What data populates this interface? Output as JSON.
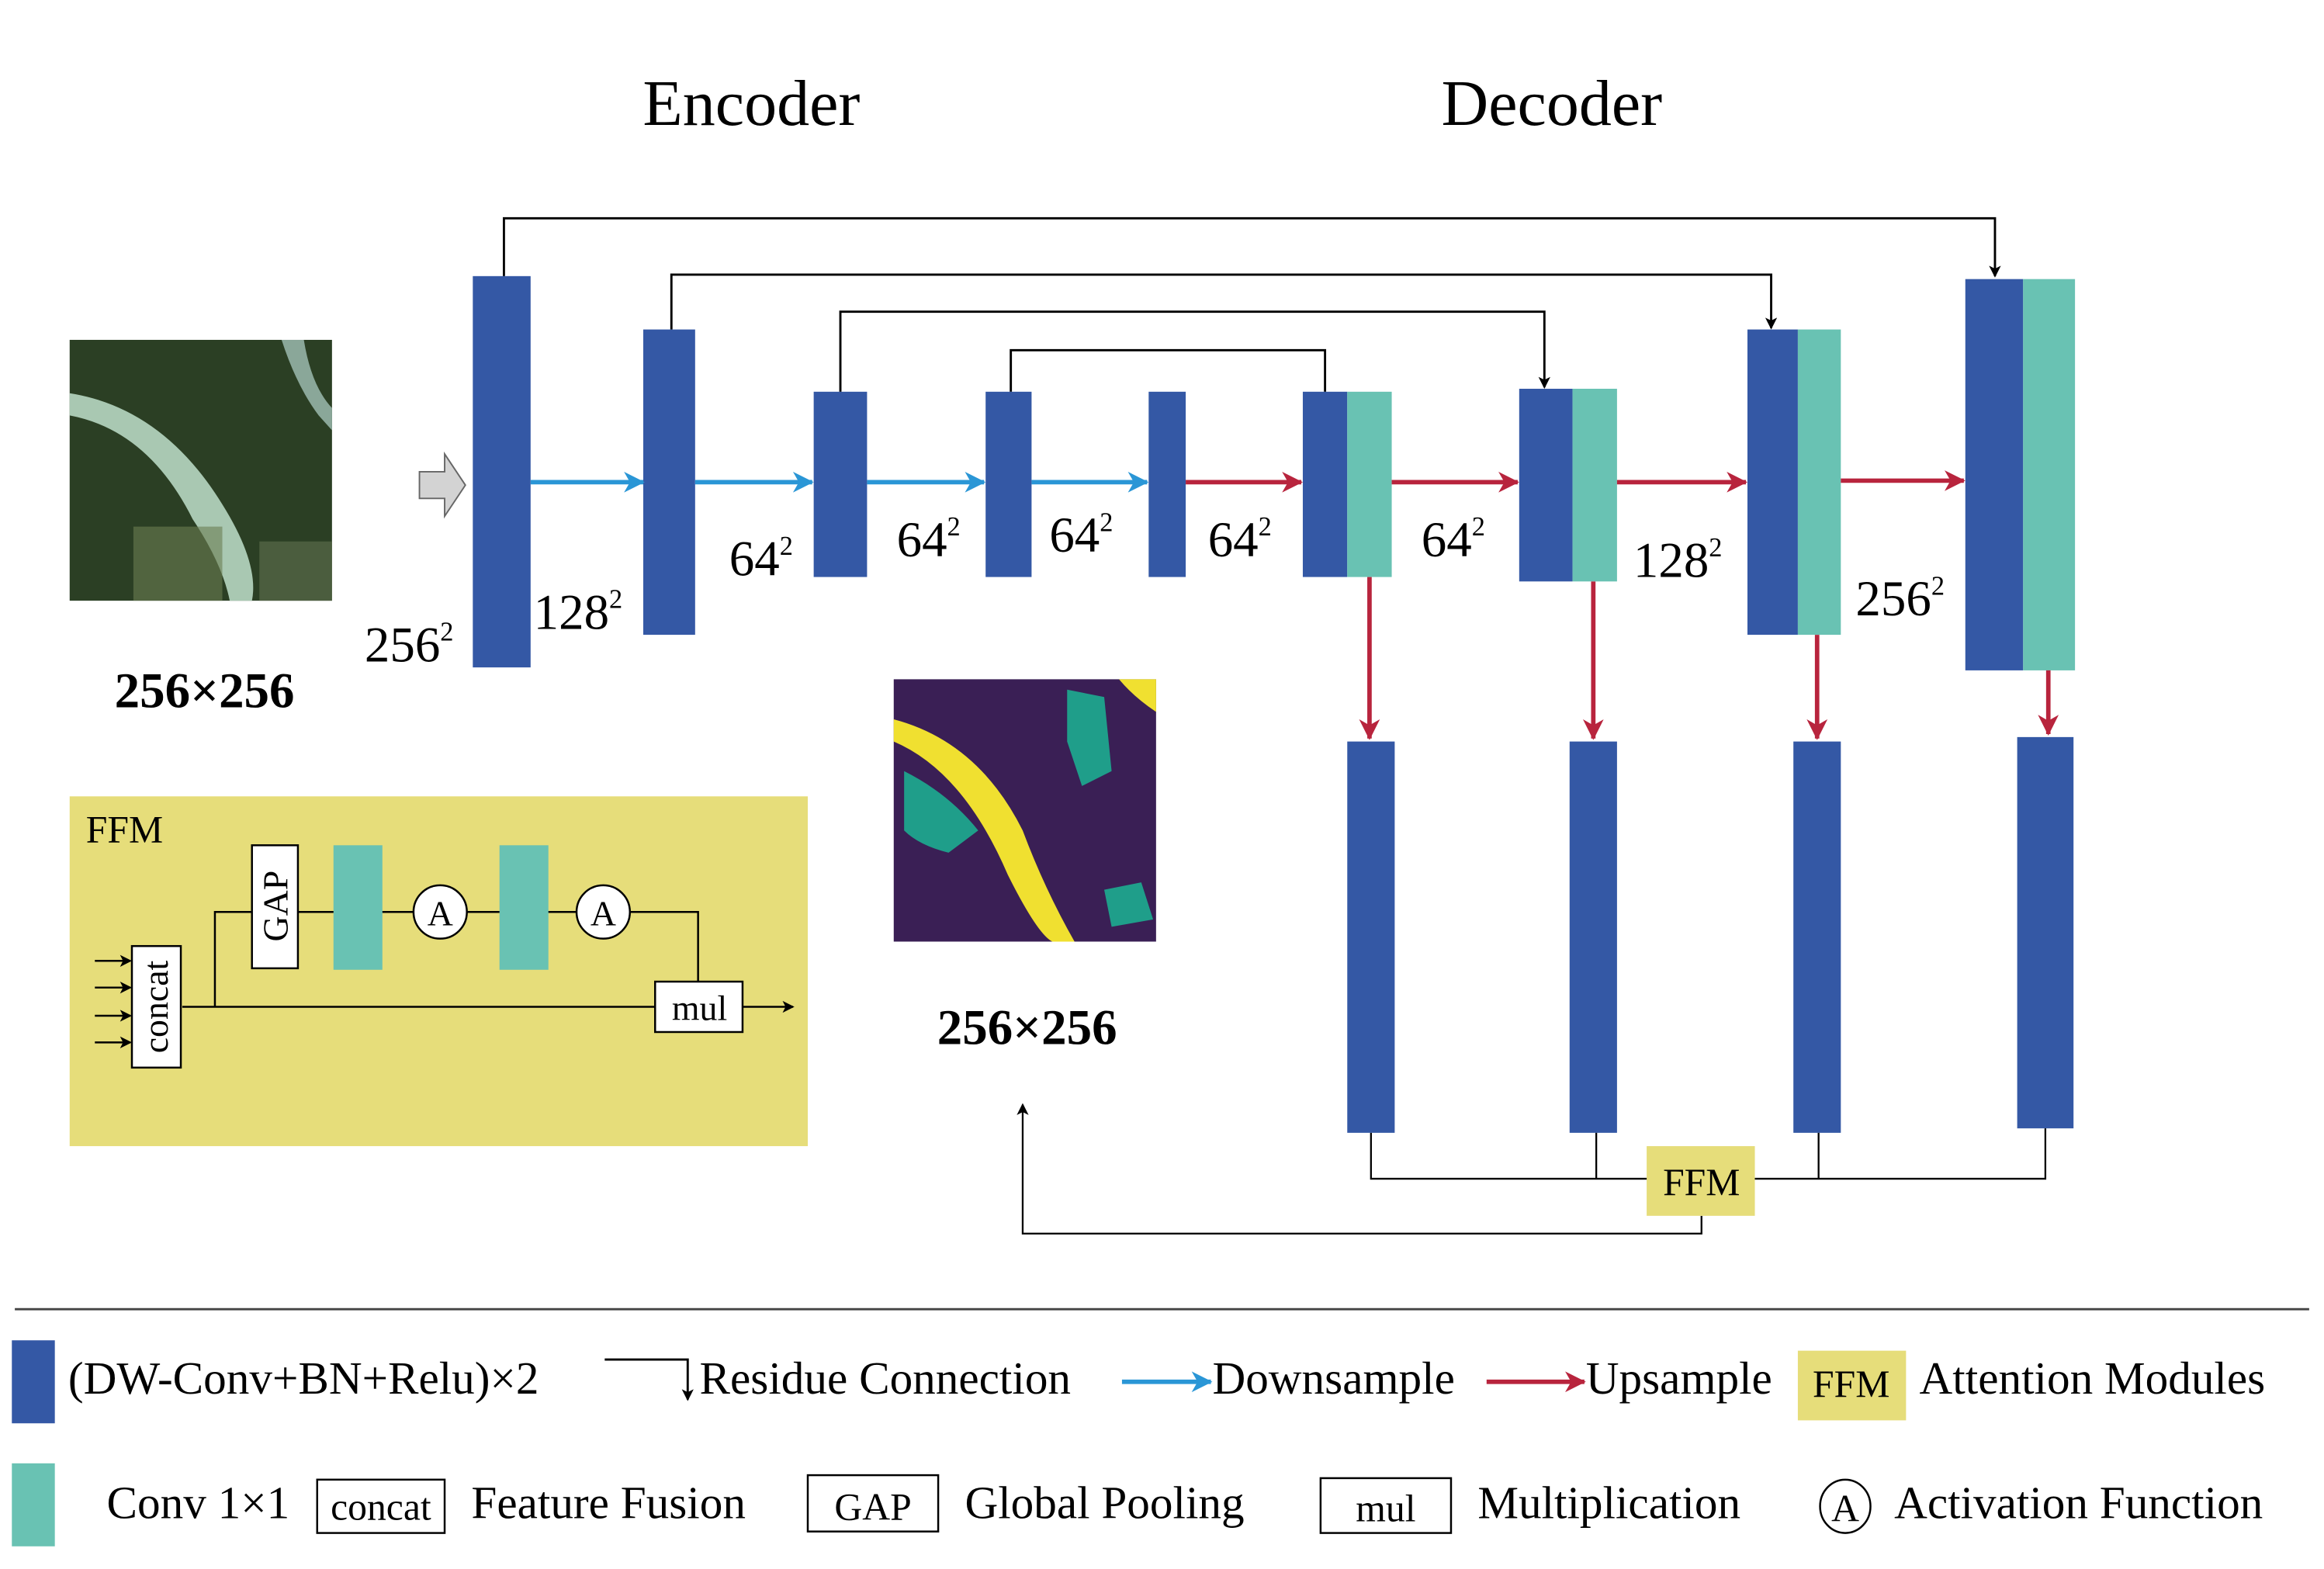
{
  "titles": {
    "encoder": "Encoder",
    "decoder": "Decoder"
  },
  "input_label": "256×256",
  "output_label": "256×256",
  "sizes": {
    "enc": [
      "256",
      "128",
      "64",
      "64",
      "64",
      "64"
    ],
    "dec": [
      "64",
      "128",
      "256"
    ],
    "sup": "2"
  },
  "ffm_box": {
    "title": "FFM",
    "gap": "GAP",
    "concat": "concat",
    "act": "A",
    "mul": "mul"
  },
  "ffm_node": "FFM",
  "legend": {
    "block": "(DW-Conv+BN+Relu)×2",
    "residue": "Residue Connection",
    "down": "Downsample",
    "up": "Upsample",
    "ffm": "FFM",
    "attention": "Attention Modules",
    "conv": "Conv 1×1",
    "concat": "concat",
    "fusion": "Feature Fusion",
    "gap": "GAP",
    "pool": "Global Pooling",
    "mul": "mul",
    "mult": "Multiplication",
    "act": "A",
    "actfn": "Activation Function"
  },
  "colors": {
    "blue": "#3458a5",
    "teal": "#69c2b3",
    "yellow": "#e6dd7a",
    "down": "#2a96d6",
    "up": "#b8243d"
  }
}
